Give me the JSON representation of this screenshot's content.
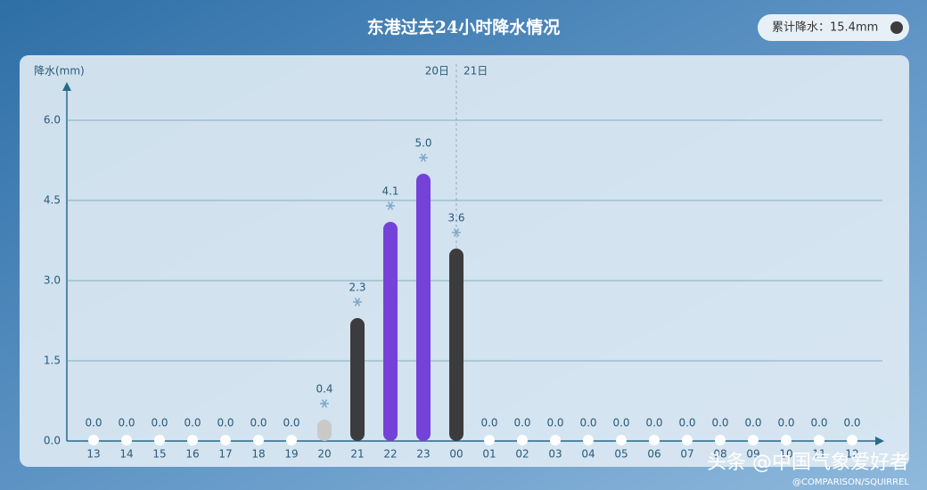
{
  "chart_data": {
    "type": "bar",
    "title": "东港过去24小时降水情况",
    "total_label": "累计降水：15.4mm",
    "y_label": "降水(mm)",
    "annotations": [
      "20日",
      "21日"
    ],
    "categories": [
      "13",
      "14",
      "15",
      "16",
      "17",
      "18",
      "19",
      "20",
      "21",
      "22",
      "23",
      "00",
      "01",
      "02",
      "03",
      "04",
      "05",
      "06",
      "07",
      "08",
      "09",
      "10",
      "11",
      "12"
    ],
    "values": [
      0,
      0,
      0,
      0,
      0,
      0,
      0,
      0.4,
      2.3,
      4.1,
      5.0,
      3.6,
      0,
      0,
      0,
      0,
      0,
      0,
      0,
      0,
      0,
      0,
      0,
      0
    ],
    "value_labels": [
      "0.0",
      "0.0",
      "0.0",
      "0.0",
      "0.0",
      "0.0",
      "0.0",
      "0.4",
      "2.3",
      "4.1",
      "5.0",
      "3.6",
      "0.0",
      "0.0",
      "0.0",
      "0.0",
      "0.0",
      "0.0",
      "0.0",
      "0.0",
      "0.0",
      "0.0",
      "0.0",
      "0.0"
    ],
    "colors": [
      "#ffffff",
      "#ffffff",
      "#ffffff",
      "#ffffff",
      "#ffffff",
      "#ffffff",
      "#ffffff",
      "#c9c9c9",
      "#3c3c3e",
      "#7442d8",
      "#7442d8",
      "#3c3c3e",
      "#ffffff",
      "#ffffff",
      "#ffffff",
      "#ffffff",
      "#ffffff",
      "#ffffff",
      "#ffffff",
      "#ffffff",
      "#ffffff",
      "#ffffff",
      "#ffffff",
      "#ffffff"
    ],
    "ylim": [
      0,
      6.6
    ],
    "yticks": [
      {
        "value": 0,
        "label": "0.0"
      },
      1.5,
      {
        "value": 3,
        "label": "3.0"
      },
      4.5,
      {
        "value": 6,
        "label": "6.0"
      }
    ],
    "grid": true,
    "watermark": "头条 @中国气象爱好者",
    "credit": "@COMPARISON/SQUIRREL"
  }
}
